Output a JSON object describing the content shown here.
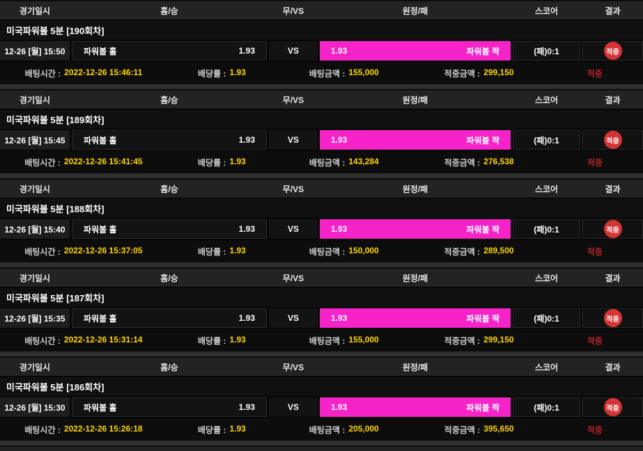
{
  "colors": {
    "highlight_pink": "#f623c8",
    "value_yellow": "#ffd400",
    "badge_red": "#d43434",
    "status_red": "#b52327",
    "page_bg": "#2f2f2f"
  },
  "table_headers": {
    "date": "경기일시",
    "home": "홈/승",
    "draw": "무/VS",
    "away": "원정/패",
    "score": "스코어",
    "result": "결과"
  },
  "labels": {
    "vs": "VS",
    "bet_time": "배팅시간 :",
    "odds": "배당률 :",
    "bet_amount": "배팅금액 :",
    "win_amount": "적중금액 :"
  },
  "blocks": [
    {
      "title": "미국파워볼 5분 [190회차]",
      "match_time": "12-26 [월] 15:50",
      "home_name": "파워볼 홀",
      "home_odds": "1.93",
      "away_odds": "1.93",
      "away_name": "파워볼 짝",
      "score": "(패)0:1",
      "result_badge": "적중",
      "bet_time": "2022-12-26 15:46:11",
      "odds": "1.93",
      "bet_amount": "155,000",
      "win_amount": "299,150",
      "status": "적중"
    },
    {
      "title": "미국파워볼 5분 [189회차]",
      "match_time": "12-26 [월] 15:45",
      "home_name": "파워볼 홀",
      "home_odds": "1.93",
      "away_odds": "1.93",
      "away_name": "파워볼 짝",
      "score": "(패)0:1",
      "result_badge": "적중",
      "bet_time": "2022-12-26 15:41:45",
      "odds": "1.93",
      "bet_amount": "143,284",
      "win_amount": "276,538",
      "status": "적중"
    },
    {
      "title": "미국파워볼 5분 [188회차]",
      "match_time": "12-26 [월] 15:40",
      "home_name": "파워볼 홀",
      "home_odds": "1.93",
      "away_odds": "1.93",
      "away_name": "파워볼 짝",
      "score": "(패)0:1",
      "result_badge": "적중",
      "bet_time": "2022-12-26 15:37:05",
      "odds": "1.93",
      "bet_amount": "150,000",
      "win_amount": "289,500",
      "status": "적중"
    },
    {
      "title": "미국파워볼 5분 [187회차]",
      "match_time": "12-26 [월] 15:35",
      "home_name": "파워볼 홀",
      "home_odds": "1.93",
      "away_odds": "1.93",
      "away_name": "파워볼 짝",
      "score": "(패)0:1",
      "result_badge": "적중",
      "bet_time": "2022-12-26 15:31:14",
      "odds": "1.93",
      "bet_amount": "155,000",
      "win_amount": "299,150",
      "status": "적중"
    },
    {
      "title": "미국파워볼 5분 [186회차]",
      "match_time": "12-26 [월] 15:30",
      "home_name": "파워볼 홀",
      "home_odds": "1.93",
      "away_odds": "1.93",
      "away_name": "파워볼 짝",
      "score": "(패)0:1",
      "result_badge": "적중",
      "bet_time": "2022-12-26 15:26:18",
      "odds": "1.93",
      "bet_amount": "205,000",
      "win_amount": "395,650",
      "status": "적중"
    }
  ]
}
